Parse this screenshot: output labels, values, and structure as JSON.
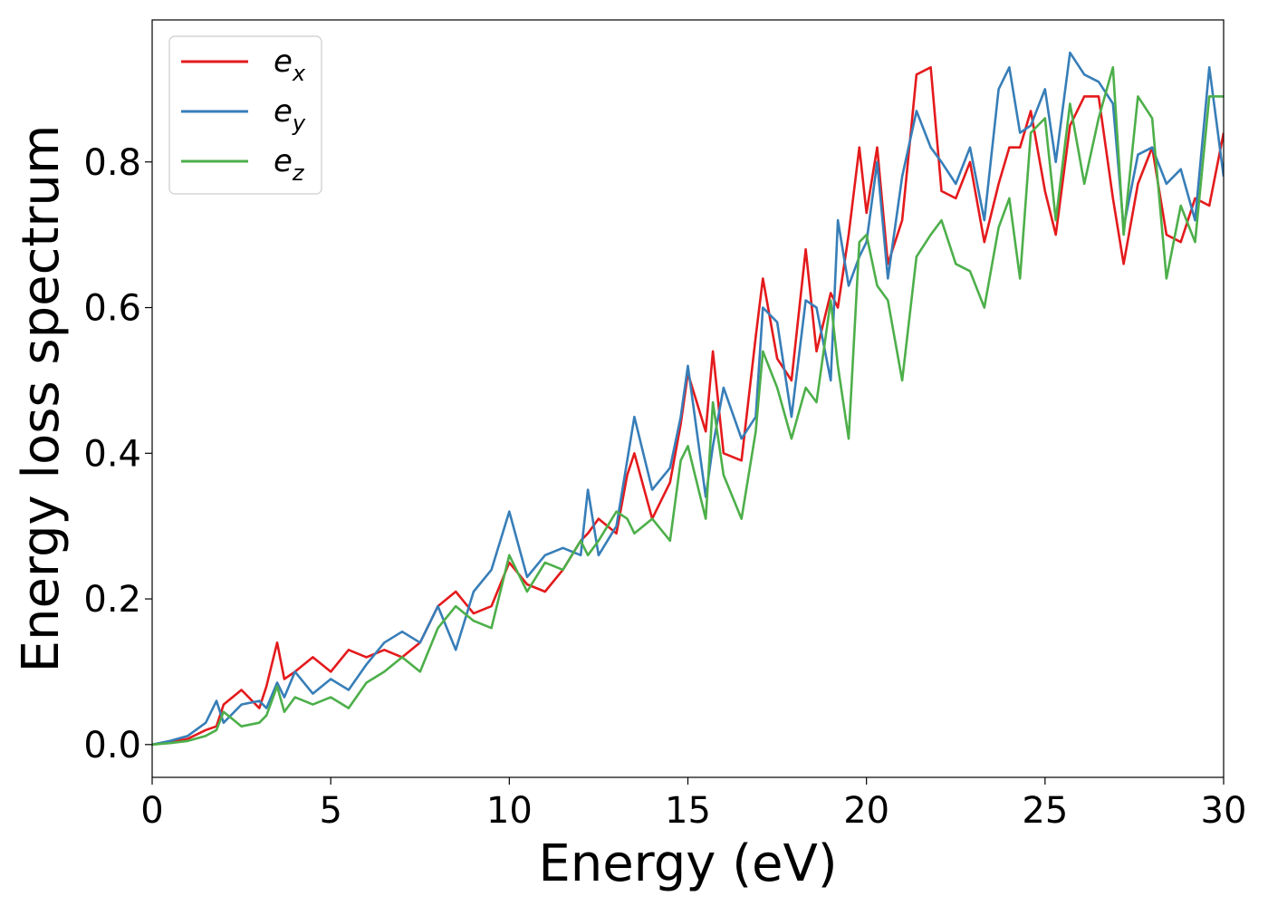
{
  "chart_data": {
    "type": "line",
    "xlabel": "Energy (eV)",
    "ylabel": "Energy loss spectrum",
    "xlim": [
      0,
      30
    ],
    "ylim": [
      -0.045,
      0.995
    ],
    "xticks": [
      0,
      5,
      10,
      15,
      20,
      25,
      30
    ],
    "yticks": [
      0.0,
      0.2,
      0.4,
      0.6,
      0.8
    ],
    "grid": false,
    "legend_position": "top-left",
    "x": [
      0.0,
      0.5,
      1.0,
      1.5,
      1.8,
      2.0,
      2.5,
      3.0,
      3.2,
      3.5,
      3.7,
      4.0,
      4.5,
      5.0,
      5.5,
      6.0,
      6.5,
      7.0,
      7.5,
      8.0,
      8.5,
      9.0,
      9.5,
      10.0,
      10.5,
      11.0,
      11.5,
      12.0,
      12.2,
      12.5,
      13.0,
      13.3,
      13.5,
      14.0,
      14.5,
      14.8,
      15.0,
      15.5,
      15.7,
      16.0,
      16.5,
      16.9,
      17.1,
      17.5,
      17.9,
      18.3,
      18.6,
      19.0,
      19.2,
      19.5,
      19.8,
      20.0,
      20.3,
      20.6,
      21.0,
      21.4,
      21.8,
      22.1,
      22.5,
      22.9,
      23.3,
      23.7,
      24.0,
      24.3,
      24.6,
      25.0,
      25.3,
      25.7,
      26.1,
      26.5,
      26.9,
      27.2,
      27.6,
      28.0,
      28.4,
      28.8,
      29.2,
      29.6,
      30.0
    ],
    "series": [
      {
        "name": "e_x",
        "color": "#e41a1c",
        "values": [
          0.0,
          0.003,
          0.008,
          0.02,
          0.025,
          0.055,
          0.075,
          0.05,
          0.08,
          0.14,
          0.09,
          0.1,
          0.12,
          0.1,
          0.13,
          0.12,
          0.13,
          0.12,
          0.14,
          0.19,
          0.21,
          0.18,
          0.19,
          0.25,
          0.22,
          0.21,
          0.24,
          0.28,
          0.29,
          0.31,
          0.29,
          0.37,
          0.4,
          0.31,
          0.36,
          0.44,
          0.51,
          0.43,
          0.54,
          0.4,
          0.39,
          0.56,
          0.64,
          0.53,
          0.5,
          0.68,
          0.54,
          0.62,
          0.6,
          0.7,
          0.82,
          0.73,
          0.82,
          0.66,
          0.72,
          0.92,
          0.93,
          0.76,
          0.75,
          0.8,
          0.69,
          0.77,
          0.82,
          0.82,
          0.87,
          0.76,
          0.7,
          0.85,
          0.89,
          0.89,
          0.75,
          0.66,
          0.77,
          0.82,
          0.7,
          0.69,
          0.75,
          0.74,
          0.84
        ]
      },
      {
        "name": "e_y",
        "color": "#377eb8",
        "values": [
          0.0,
          0.005,
          0.012,
          0.03,
          0.06,
          0.03,
          0.055,
          0.06,
          0.05,
          0.085,
          0.065,
          0.1,
          0.07,
          0.09,
          0.075,
          0.11,
          0.14,
          0.155,
          0.14,
          0.19,
          0.13,
          0.21,
          0.24,
          0.32,
          0.23,
          0.26,
          0.27,
          0.26,
          0.35,
          0.26,
          0.3,
          0.39,
          0.45,
          0.35,
          0.38,
          0.45,
          0.52,
          0.34,
          0.41,
          0.49,
          0.42,
          0.45,
          0.6,
          0.58,
          0.45,
          0.61,
          0.6,
          0.5,
          0.72,
          0.63,
          0.67,
          0.69,
          0.8,
          0.64,
          0.78,
          0.87,
          0.82,
          0.8,
          0.77,
          0.82,
          0.72,
          0.9,
          0.93,
          0.84,
          0.85,
          0.9,
          0.8,
          0.95,
          0.92,
          0.91,
          0.88,
          0.71,
          0.81,
          0.82,
          0.77,
          0.79,
          0.72,
          0.93,
          0.78
        ]
      },
      {
        "name": "e_z",
        "color": "#4daf4a",
        "values": [
          0.0,
          0.002,
          0.005,
          0.012,
          0.02,
          0.045,
          0.025,
          0.03,
          0.04,
          0.08,
          0.045,
          0.065,
          0.055,
          0.065,
          0.05,
          0.085,
          0.1,
          0.12,
          0.1,
          0.16,
          0.19,
          0.17,
          0.16,
          0.26,
          0.21,
          0.25,
          0.24,
          0.28,
          0.26,
          0.28,
          0.32,
          0.31,
          0.29,
          0.31,
          0.28,
          0.39,
          0.41,
          0.31,
          0.47,
          0.37,
          0.31,
          0.43,
          0.54,
          0.49,
          0.42,
          0.49,
          0.47,
          0.61,
          0.52,
          0.42,
          0.69,
          0.7,
          0.63,
          0.61,
          0.5,
          0.67,
          0.7,
          0.72,
          0.66,
          0.65,
          0.6,
          0.71,
          0.75,
          0.64,
          0.84,
          0.86,
          0.72,
          0.88,
          0.77,
          0.86,
          0.93,
          0.7,
          0.89,
          0.86,
          0.64,
          0.74,
          0.69,
          0.89,
          0.89
        ]
      }
    ]
  },
  "legend": {
    "items": [
      {
        "base": "e",
        "sub": "x"
      },
      {
        "base": "e",
        "sub": "y"
      },
      {
        "base": "e",
        "sub": "z"
      }
    ]
  }
}
